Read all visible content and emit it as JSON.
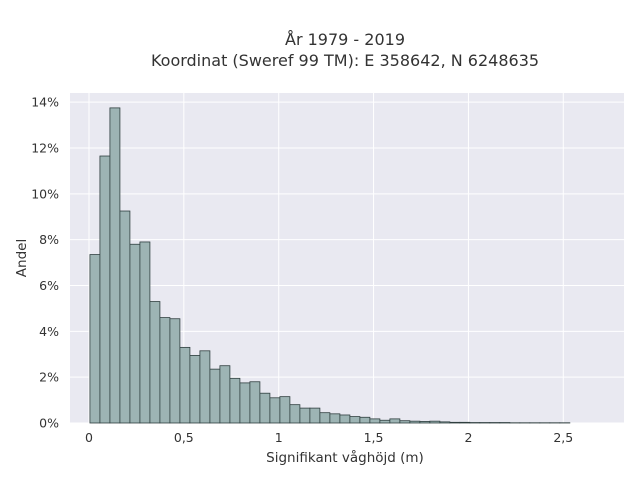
{
  "chart_data": {
    "type": "bar",
    "title_line1": "År 1979 - 2019",
    "title_line2": "Koordinat (Sweref 99 TM): E 358642, N 6248635",
    "xlabel": "Signifikant våghöjd (m)",
    "ylabel": "Andel",
    "xlim": [
      -0.1,
      2.82
    ],
    "ylim": [
      0,
      14.4
    ],
    "x_ticks": [
      0,
      0.5,
      1,
      1.5,
      2,
      2.5
    ],
    "x_tick_labels": [
      "0",
      "0,5",
      "1",
      "1,5",
      "2",
      "2,5"
    ],
    "y_ticks": [
      0,
      2,
      4,
      6,
      8,
      10,
      12,
      14
    ],
    "y_tick_labels": [
      "0%",
      "2%",
      "4%",
      "6%",
      "8%",
      "10%",
      "12%",
      "14%"
    ],
    "bin_start": 0.005,
    "bin_width": 0.0527,
    "values": [
      7.35,
      11.65,
      13.75,
      9.25,
      7.8,
      7.9,
      5.3,
      4.6,
      4.55,
      3.3,
      2.95,
      3.15,
      2.35,
      2.5,
      1.95,
      1.75,
      1.8,
      1.3,
      1.1,
      1.15,
      0.8,
      0.65,
      0.65,
      0.45,
      0.4,
      0.35,
      0.28,
      0.25,
      0.18,
      0.12,
      0.18,
      0.1,
      0.08,
      0.07,
      0.08,
      0.05,
      0.03,
      0.03,
      0.02,
      0.02,
      0.02,
      0.02,
      0.01,
      0.01,
      0.01,
      0.01,
      0.01,
      0.01
    ],
    "colors": {
      "bar_fill": "#9db4b4",
      "bar_edge": "#2f3f3f",
      "plot_bg": "#e9e9f1",
      "grid": "#ffffff"
    },
    "grid": true
  }
}
